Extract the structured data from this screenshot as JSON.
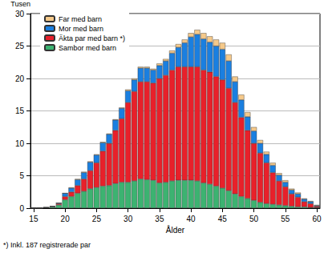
{
  "chart_data": {
    "type": "bar",
    "stacked": true,
    "y_label": "Tusen",
    "x_label": "Ålder",
    "annotation": "*) Inkl. 187 registrerade par",
    "categories": [
      "15",
      null,
      null,
      null,
      null,
      "20",
      null,
      null,
      null,
      null,
      "25",
      null,
      null,
      null,
      null,
      "30",
      null,
      null,
      null,
      null,
      "35",
      null,
      null,
      null,
      null,
      "40",
      null,
      null,
      null,
      null,
      "45",
      null,
      null,
      null,
      null,
      "50",
      null,
      null,
      null,
      null,
      "55",
      null,
      null,
      null,
      null,
      "60"
    ],
    "series": [
      {
        "name": "Sambor med barn",
        "color": "#3cb371",
        "values": [
          0,
          0,
          0.1,
          0.2,
          0.5,
          1.3,
          1.8,
          2.3,
          2.6,
          3.0,
          3.2,
          3.4,
          3.5,
          3.8,
          4.0,
          4.0,
          4.2,
          4.5,
          4.4,
          4.3,
          3.9,
          4.0,
          4.2,
          4.3,
          4.3,
          4.3,
          4.2,
          3.9,
          3.7,
          3.4,
          3.1,
          2.7,
          2.2,
          1.8,
          1.5,
          1.2,
          0.9,
          0.7,
          0.6,
          0.5,
          0.4,
          0.3,
          0.2,
          0.2,
          0.1,
          0.1
        ]
      },
      {
        "name": "Äkta par med barn *)",
        "color": "#e8202a",
        "values": [
          0,
          0,
          0,
          0.05,
          0.2,
          0.5,
          0.7,
          1.2,
          1.9,
          2.8,
          3.8,
          5.4,
          6.5,
          8.2,
          9.8,
          12.3,
          13.8,
          15.0,
          15.1,
          15.0,
          16.1,
          16.5,
          17.1,
          17.5,
          17.5,
          17.5,
          17.6,
          17.4,
          17.3,
          16.9,
          16.7,
          15.8,
          14.1,
          12.2,
          10.5,
          8.8,
          7.6,
          6.3,
          4.9,
          3.7,
          2.9,
          1.9,
          1.5,
          0.8,
          0.6,
          0.2
        ]
      },
      {
        "name": "Mor med barn",
        "color": "#1a7fe0",
        "values": [
          0,
          0,
          0,
          0.05,
          0.1,
          0.5,
          0.6,
          0.9,
          1.0,
          1.3,
          1.2,
          1.3,
          1.4,
          1.6,
          1.6,
          1.8,
          1.8,
          2.1,
          2.1,
          2.0,
          2.0,
          2.2,
          2.6,
          3.0,
          3.7,
          4.6,
          5.0,
          4.8,
          4.6,
          4.7,
          4.7,
          4.2,
          3.2,
          2.7,
          2.1,
          1.9,
          1.5,
          1.3,
          1.1,
          0.9,
          0.7,
          0.6,
          0.5,
          0.4,
          0.3,
          0.1
        ]
      },
      {
        "name": "Far med barn",
        "color": "#f5c98a",
        "values": [
          0,
          0,
          0,
          0,
          0,
          0,
          0.1,
          0.1,
          0.1,
          0.1,
          0.1,
          0.1,
          0.1,
          0.1,
          0.1,
          0.2,
          0.2,
          0.2,
          0.2,
          0.2,
          0.3,
          0.3,
          0.4,
          0.5,
          0.5,
          0.6,
          0.7,
          0.9,
          0.9,
          1.0,
          1.0,
          1.0,
          0.8,
          0.8,
          0.7,
          0.6,
          0.5,
          0.4,
          0.4,
          0.3,
          0.3,
          0.2,
          0.2,
          0.1,
          0.1,
          0.1
        ]
      }
    ],
    "ylim": [
      0,
      30
    ],
    "yticks": [
      0,
      5,
      10,
      15,
      20,
      25,
      30
    ],
    "grid": true,
    "legend": "upper left"
  }
}
